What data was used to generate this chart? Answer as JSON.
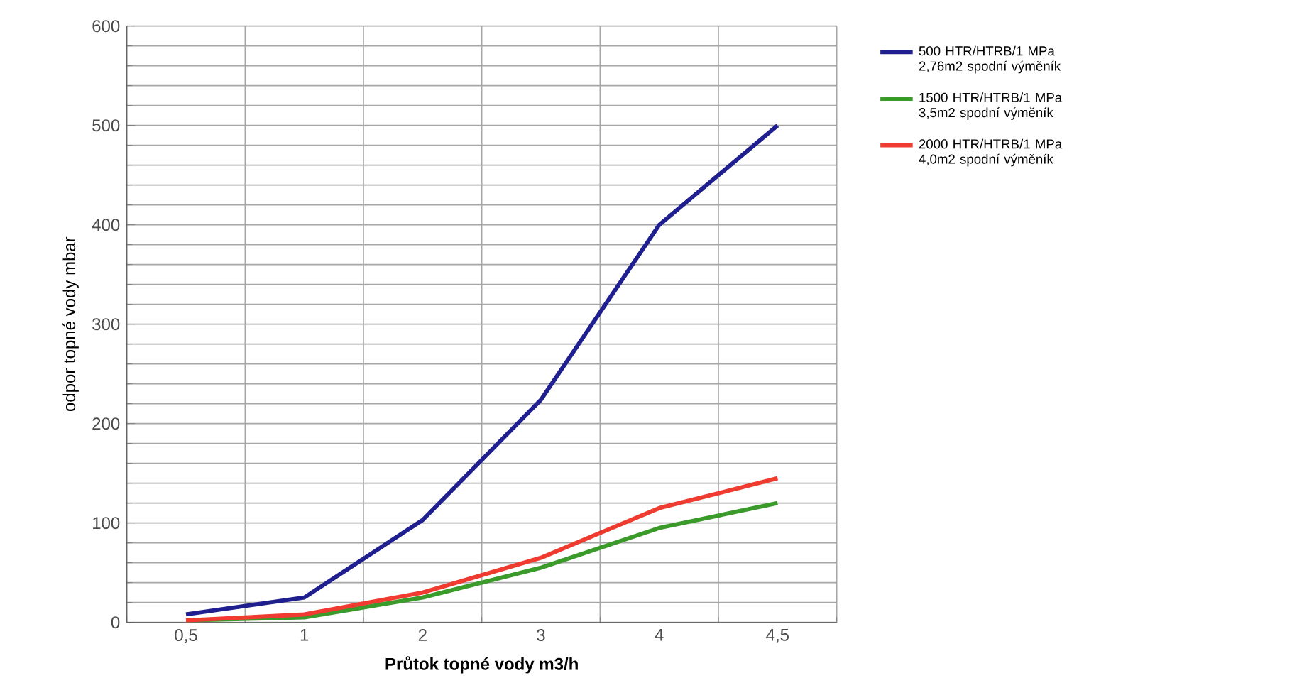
{
  "chart_data": {
    "type": "line",
    "xlabel": "Průtok topné vody m3/h",
    "ylabel": "odpor topné vody mbar",
    "categories": [
      "0,5",
      "1",
      "2",
      "3",
      "4",
      "4,5"
    ],
    "ylim": [
      0,
      600
    ],
    "yticks": [
      0,
      100,
      200,
      300,
      400,
      500,
      600
    ],
    "grid": true,
    "legend": "right",
    "marker": "none",
    "line_style": "solid",
    "series": [
      {
        "name": "500 HTR/HTRB/1 MPa 2,76m2 spodní výměník",
        "color": "#1f1f8f",
        "values": [
          8,
          25,
          103,
          224,
          400,
          500
        ]
      },
      {
        "name": "1500 HTR/HTRB/1 MPa 3,5m2 spodní výměník",
        "color": "#3a9a2a",
        "values": [
          2,
          5,
          25,
          55,
          95,
          120
        ]
      },
      {
        "name": "2000 HTR/HTRB/1 MPa 4,0m2 spodní výměník",
        "color": "#f03c30",
        "values": [
          2,
          8,
          30,
          65,
          115,
          145
        ]
      }
    ]
  }
}
